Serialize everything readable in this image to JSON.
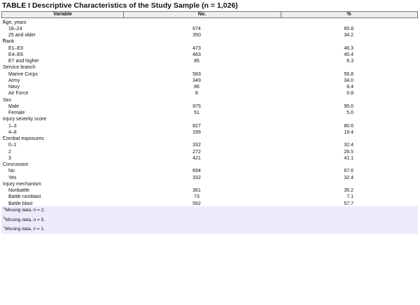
{
  "title": "TABLE I Descriptive Characteristics of the Study Sample (n = 1,026)",
  "table": {
    "header": [
      "Variable",
      "No.",
      "%"
    ],
    "groups": [
      {
        "label": "Age, years",
        "sup": "a",
        "rows": [
          [
            "18–24",
            "674",
            "65.8"
          ],
          [
            "25 and older",
            "350",
            "34.2"
          ]
        ]
      },
      {
        "label": "Rank",
        "sup": "b",
        "rows": [
          [
            "E1–E3",
            "473",
            "46.3"
          ],
          [
            "E4–E6",
            "463",
            "45.4"
          ],
          [
            "E7 and higher",
            "85",
            "8.3"
          ]
        ]
      },
      {
        "label": "Service branch",
        "rows": [
          [
            "Marine Corps",
            "583",
            "56.8"
          ],
          [
            "Army",
            "349",
            "34.0"
          ],
          [
            "Navy",
            "86",
            "8.4"
          ],
          [
            "Air Force",
            "8",
            "0.8"
          ]
        ]
      },
      {
        "label": "Sex",
        "rows": [
          [
            "Male",
            "975",
            "95.0"
          ],
          [
            "Female",
            "51",
            "5.0"
          ]
        ]
      },
      {
        "label": "Injury severity score",
        "rows": [
          [
            "1–3",
            "827",
            "80.6"
          ],
          [
            "4–8",
            "199",
            "19.4"
          ]
        ]
      },
      {
        "label": "Combat exposures",
        "sup": "c",
        "rows": [
          [
            "0–1",
            "332",
            "32.4"
          ],
          [
            "2",
            "272",
            "26.5"
          ],
          [
            "3",
            "421",
            "41.1"
          ]
        ]
      },
      {
        "label": "Concussion",
        "rows": [
          [
            "No",
            "694",
            "67.6"
          ],
          [
            "Yes",
            "332",
            "32.4"
          ]
        ]
      },
      {
        "label": "Injury mechanism",
        "rows": [
          [
            "Nonbattle",
            "361",
            "35.2"
          ],
          [
            "Battle nonblast",
            "73",
            "7.1"
          ],
          [
            "Battle blast",
            "592",
            "57.7"
          ]
        ]
      }
    ]
  },
  "footnotes": [
    {
      "mark": "a",
      "prefix": "Missing data, ",
      "italic": "n",
      "suffix": " = 2."
    },
    {
      "mark": "b",
      "prefix": "Missing data, ",
      "italic": "n",
      "suffix": " = 5."
    },
    {
      "mark": "c",
      "prefix": "Missing data, ",
      "italic": "n",
      "suffix": " = 1."
    }
  ]
}
